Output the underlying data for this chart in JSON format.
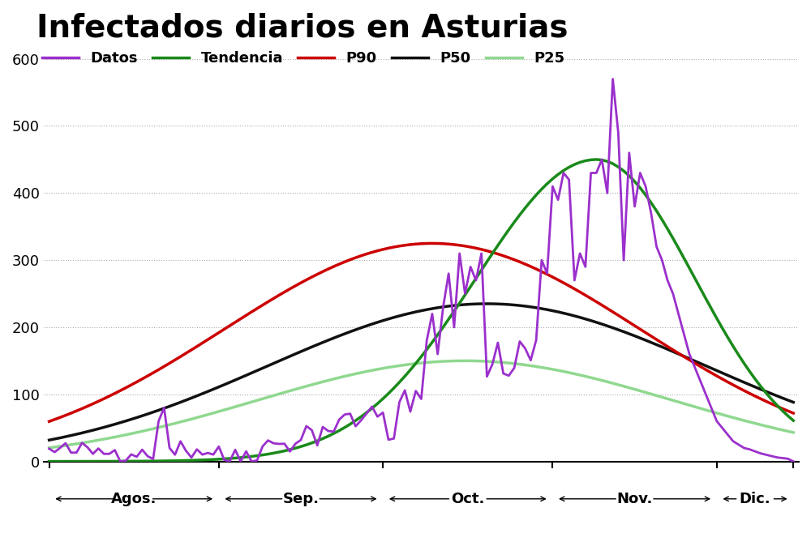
{
  "title": "Infectados diarios en Asturias",
  "title_fontsize": 28,
  "title_fontweight": "bold",
  "background_color": "#ffffff",
  "legend_entries": [
    "Datos",
    "Tendencia",
    "P90",
    "P50",
    "P25"
  ],
  "legend_colors": [
    "#9B30CC",
    "#1a8a1a",
    "#cc0000",
    "#111111",
    "#90d890"
  ],
  "ylim": [
    0,
    620
  ],
  "yticks": [
    0,
    100,
    200,
    300,
    400,
    500,
    600
  ],
  "xlabel_months": [
    "Agos.",
    "Sep.",
    "Oct.",
    "Nov.",
    "Dic."
  ],
  "grid_color": "#aaaaaa",
  "grid_linestyle": ":",
  "line_widths": [
    2.0,
    2.5,
    2.5,
    2.5,
    2.5
  ]
}
